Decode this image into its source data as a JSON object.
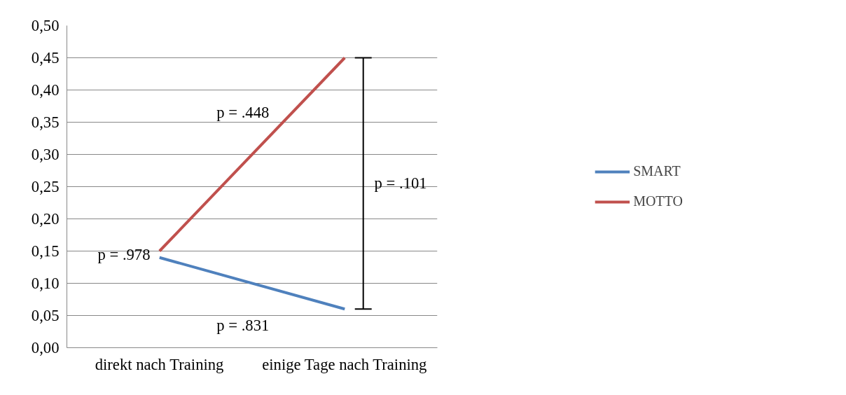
{
  "chart_data": {
    "type": "line",
    "categories": [
      "direkt nach Training",
      "einige Tage nach Training"
    ],
    "series": [
      {
        "name": "SMART",
        "color": "#4f81bd",
        "values": [
          0.14,
          0.06
        ]
      },
      {
        "name": "MOTTO",
        "color": "#c0504d",
        "values": [
          0.15,
          0.45
        ]
      }
    ],
    "ylim": [
      0,
      0.5
    ],
    "yticks": [
      {
        "value": 0,
        "label": "0,00"
      },
      {
        "value": 0.05,
        "label": "0,05"
      },
      {
        "value": 0.1,
        "label": "0,10"
      },
      {
        "value": 0.15,
        "label": "0,15"
      },
      {
        "value": 0.2,
        "label": "0,20"
      },
      {
        "value": 0.25,
        "label": "0,25"
      },
      {
        "value": 0.3,
        "label": "0,30"
      },
      {
        "value": 0.35,
        "label": "0,35"
      },
      {
        "value": 0.4,
        "label": "0,40"
      },
      {
        "value": 0.45,
        "label": "0,45"
      },
      {
        "value": 0.5,
        "label": "0,50"
      }
    ],
    "annotations": [
      "p = .978",
      "p = .448",
      "p = .831",
      "p = .101"
    ],
    "grid": "y",
    "legend": "right",
    "marker": "none",
    "line_style": "solid"
  }
}
